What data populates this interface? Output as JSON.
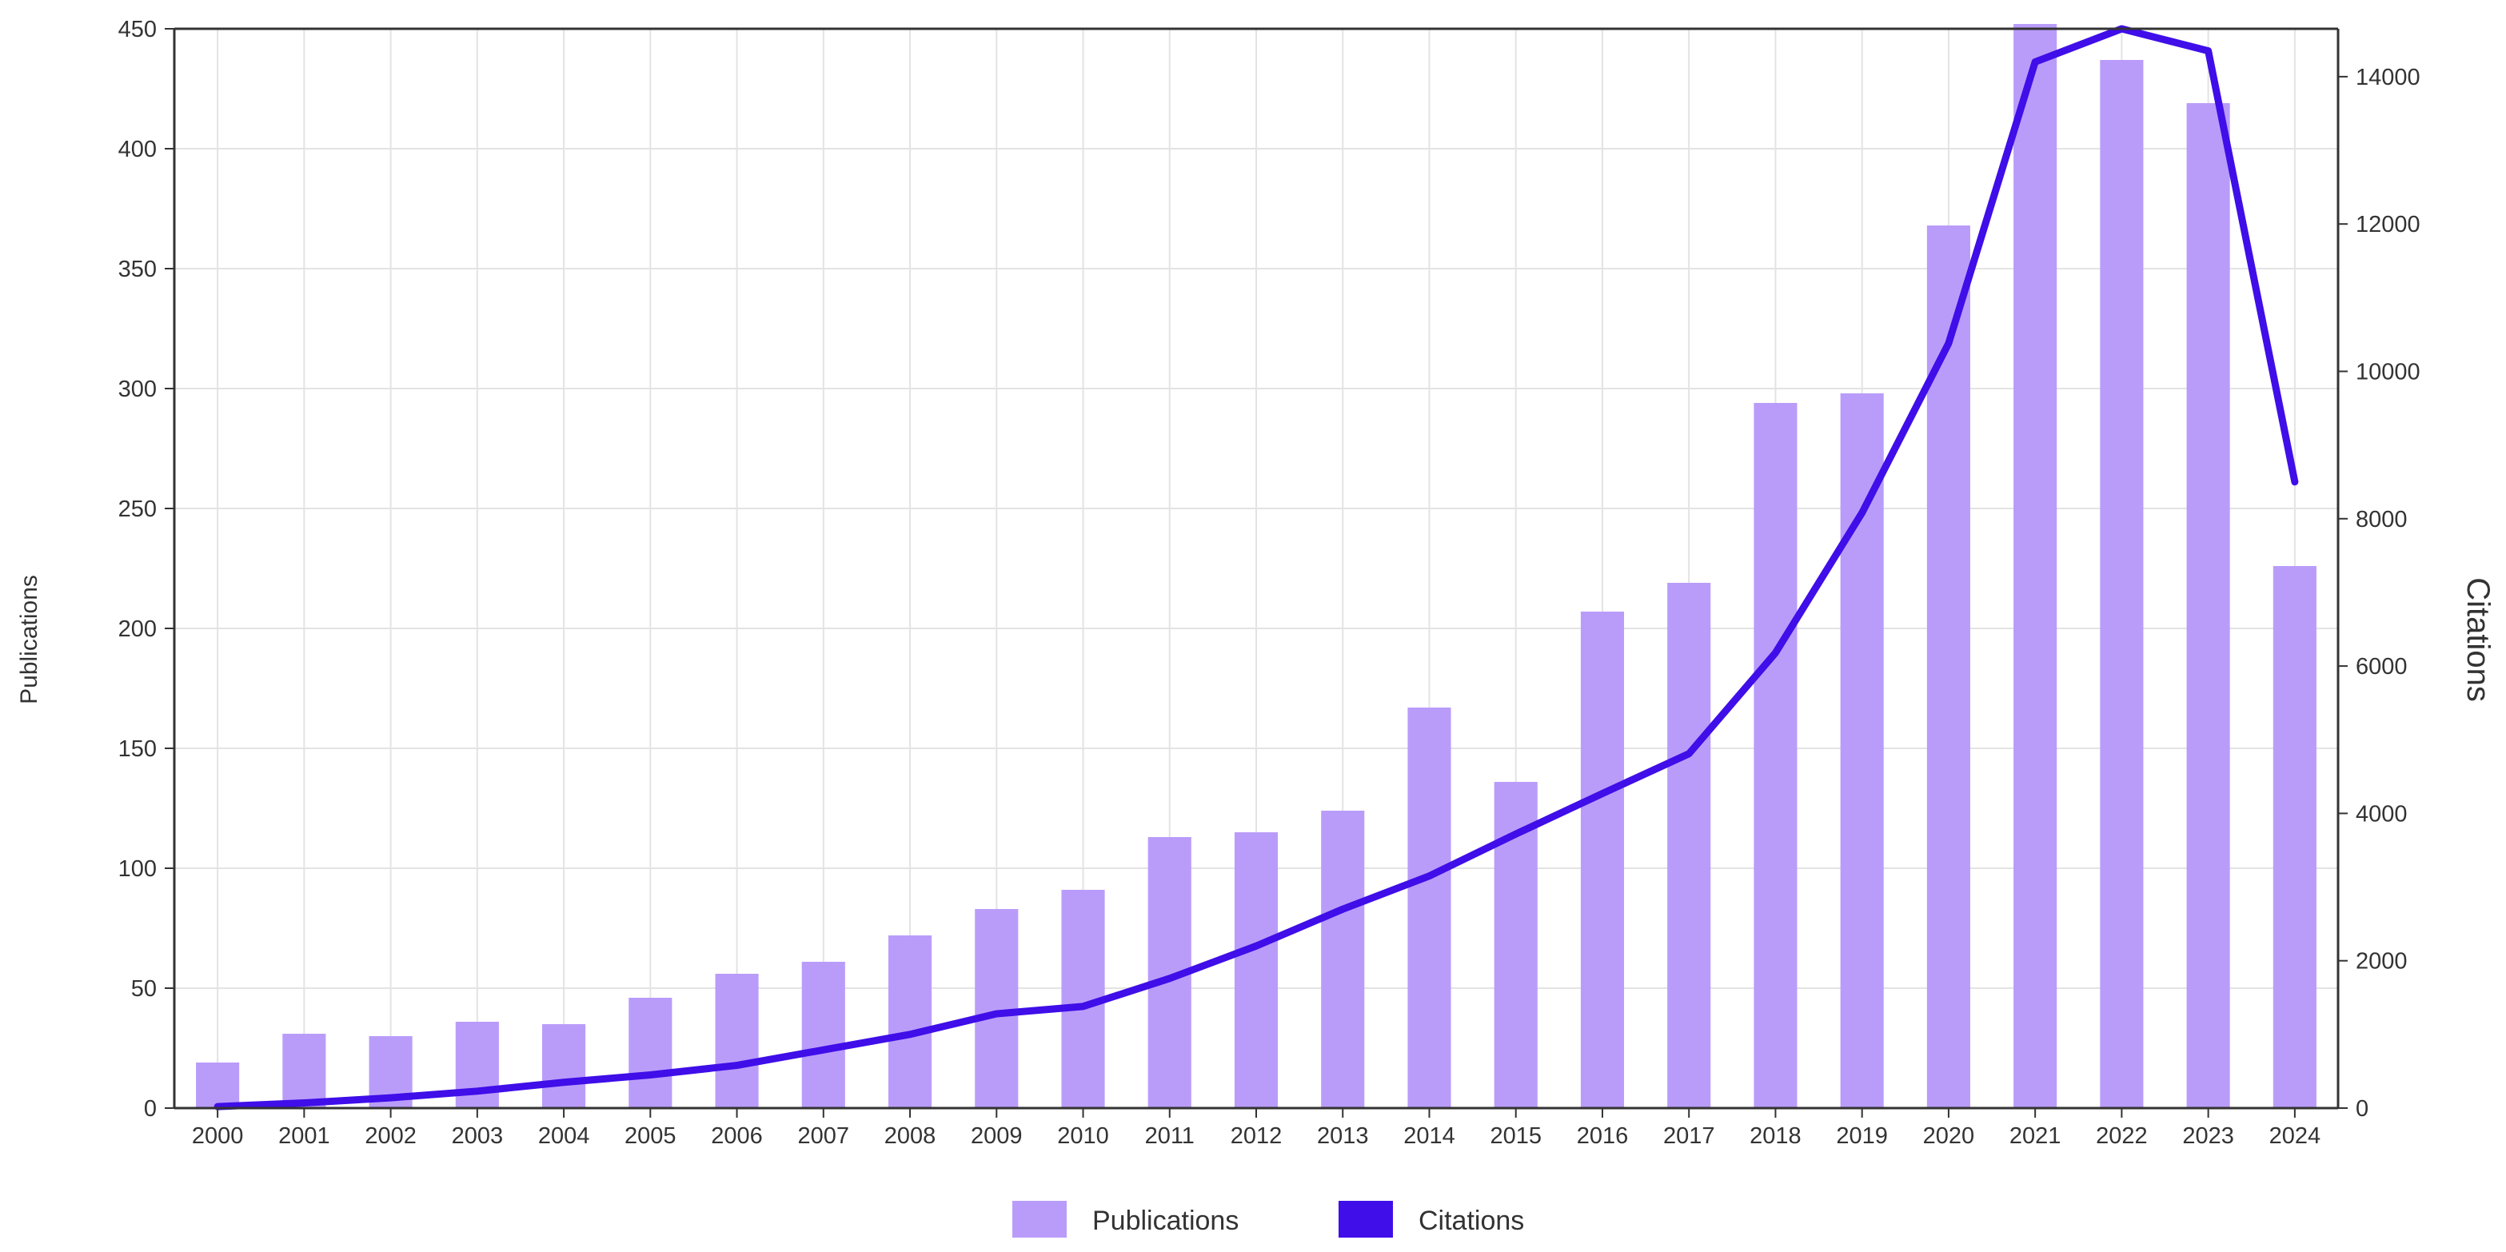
{
  "chart_data": {
    "type": "bar",
    "categories": [
      "2000",
      "2001",
      "2002",
      "2003",
      "2004",
      "2005",
      "2006",
      "2007",
      "2008",
      "2009",
      "2010",
      "2011",
      "2012",
      "2013",
      "2014",
      "2015",
      "2016",
      "2017",
      "2018",
      "2019",
      "2020",
      "2021",
      "2022",
      "2023",
      "2024"
    ],
    "series": [
      {
        "name": "Publications",
        "type": "bar",
        "axis": "left",
        "color": "#b99cfa",
        "values": [
          19,
          31,
          30,
          36,
          35,
          46,
          56,
          61,
          72,
          83,
          91,
          113,
          115,
          124,
          167,
          136,
          207,
          219,
          294,
          298,
          368,
          452,
          437,
          419,
          226
        ]
      },
      {
        "name": "Citations",
        "type": "line",
        "axis": "right",
        "color": "#3f0ee8",
        "values": [
          20,
          70,
          140,
          230,
          350,
          450,
          580,
          790,
          1000,
          1280,
          1380,
          1760,
          2200,
          2700,
          3150,
          3720,
          4270,
          4810,
          6180,
          8080,
          10380,
          14200,
          14650,
          14350,
          8500
        ]
      }
    ],
    "ylabel": "Publications",
    "y2label": "Citations",
    "ylim": [
      0,
      450
    ],
    "y2lim": [
      0,
      14650
    ],
    "yticks": [
      0,
      50,
      100,
      150,
      200,
      250,
      300,
      350,
      400,
      450
    ],
    "y2ticks": [
      0,
      2000,
      4000,
      6000,
      8000,
      10000,
      12000,
      14000
    ],
    "grid": true,
    "legend": {
      "position": "bottom-center",
      "items": [
        "Publications",
        "Citations"
      ]
    }
  }
}
